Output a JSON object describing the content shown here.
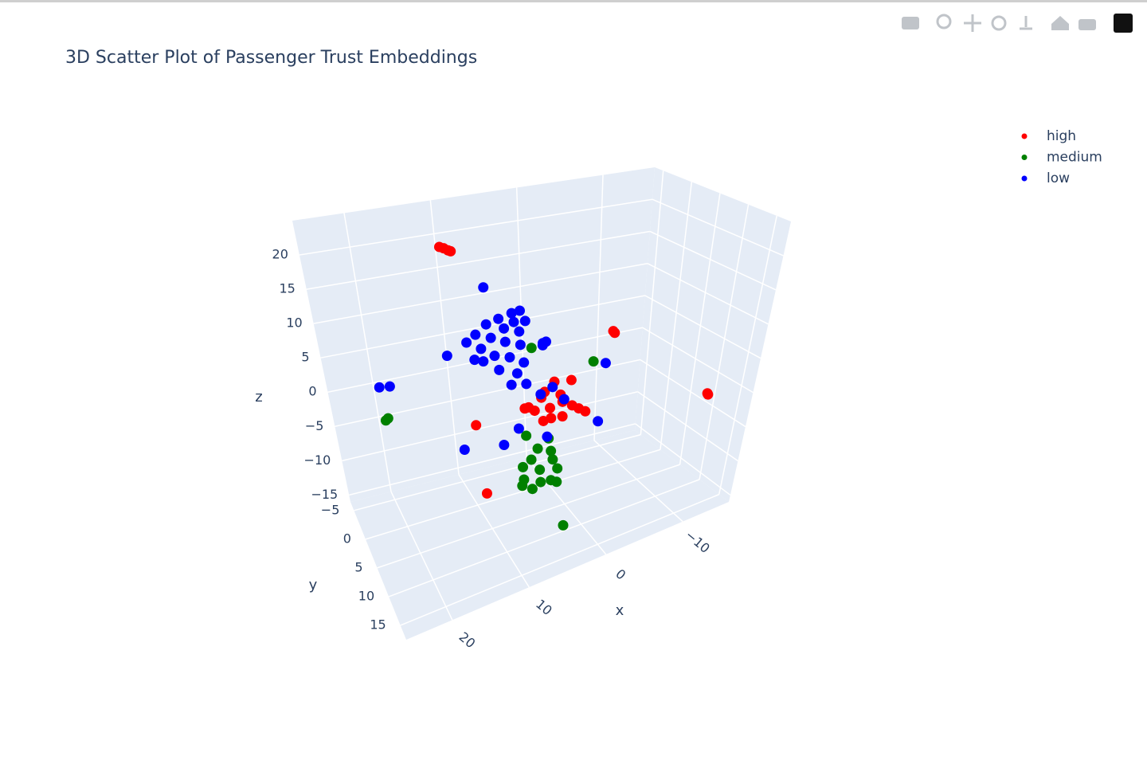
{
  "chart_data": {
    "type": "scatter3d",
    "title": "3D Scatter Plot of Passenger Trust Embeddings",
    "x_label": "x",
    "y_label": "y",
    "z_label": "z",
    "xlim": [
      -16,
      26
    ],
    "ylim": [
      -6.5,
      17.5
    ],
    "zlim": [
      -16,
      25
    ],
    "xticks": [
      {
        "value": -10,
        "label": "−10"
      },
      0,
      10,
      20
    ],
    "yticks": [
      {
        "value": -5,
        "label": "−5"
      },
      0,
      5,
      10,
      15
    ],
    "zticks": [
      {
        "value": -15,
        "label": "−15"
      },
      {
        "value": -10,
        "label": "−10"
      },
      {
        "value": -5,
        "label": "−5"
      },
      0,
      5,
      10,
      15,
      20
    ],
    "grid": true,
    "legend": "top-right",
    "series": [
      {
        "name": "high",
        "color": "#ff0000",
        "x": [
          2.7,
          3.9,
          1.1,
          4.7,
          1.0,
          5.5,
          3.5,
          1.4,
          -0.2,
          -2.0,
          -1.1,
          2.3,
          0.1,
          6.0,
          2.5,
          3.5,
          11.6,
          11.1,
          10.6,
          10.3,
          -8.2,
          -8.0,
          -15.1,
          -15.0,
          12.3,
          10.8
        ],
        "y": [
          5,
          5,
          5,
          5,
          5,
          5,
          5,
          5,
          5,
          5,
          5,
          5,
          5,
          5,
          5,
          5,
          -3,
          -3,
          -3,
          -3,
          0,
          0,
          10,
          10,
          5,
          5
        ],
        "z": [
          -1.5,
          0.3,
          -1.1,
          -1.3,
          -3.2,
          -0.6,
          -3.1,
          0.0,
          -2.0,
          -3.4,
          -2.7,
          2.1,
          1.7,
          -0.6,
          -3.0,
          1.0,
          19.9,
          19.6,
          19.2,
          19.0,
          4.0,
          4.3,
          -3.0,
          -2.8,
          -1.1,
          -10.9
        ]
      },
      {
        "name": "medium",
        "color": "#008000",
        "x": [
          3.7,
          4.9,
          2.0,
          5.8,
          3.5,
          1.3,
          4.1,
          2.3,
          4.6,
          6.0,
          1.3,
          6.0,
          2.1,
          2.7,
          5.4,
          -2.6,
          5.7,
          23.8,
          23.5,
          2.5
        ],
        "y": [
          5,
          5,
          5,
          5,
          5,
          5,
          5,
          5,
          5,
          5,
          5,
          5,
          5,
          5,
          5,
          5,
          5,
          5,
          5,
          10
        ],
        "z": [
          -9.9,
          -8.1,
          -9.0,
          -10.6,
          -11.7,
          -10.5,
          -6.8,
          -7.7,
          -12.3,
          -11.4,
          -12.4,
          -8.8,
          -11.9,
          -5.8,
          7.7,
          3.6,
          -4.5,
          2.7,
          2.9,
          -15.2
        ]
      },
      {
        "name": "low",
        "color": "#0000ff",
        "x": [
          8.0,
          7.0,
          9.6,
          6.3,
          11.1,
          8.9,
          7.0,
          12.4,
          10.5,
          8.7,
          6.8,
          13.5,
          11.7,
          10.0,
          8.1,
          6.3,
          12.5,
          9.4,
          7.1,
          5.9,
          7.8,
          4.0,
          7.7,
          11.4,
          4.0,
          3.6,
          15.9,
          -4.2,
          -3.8,
          4.0,
          2.5,
          0.9,
          6.7,
          2.9,
          8.6,
          13.8,
          24.4,
          23.1,
          8.4
        ],
        "y": [
          5,
          5,
          5,
          5,
          5,
          5,
          5,
          5,
          5,
          5,
          5,
          5,
          5,
          5,
          5,
          5,
          5,
          5,
          5,
          5,
          5,
          5,
          5,
          5,
          5,
          5,
          5,
          5,
          5,
          5,
          5,
          5,
          5,
          5,
          5,
          5,
          5,
          5,
          0
        ],
        "z": [
          13.2,
          13.3,
          12.8,
          11.7,
          12.4,
          11.3,
          10.4,
          11.3,
          10.4,
          9.4,
          8.5,
          10.5,
          9.2,
          7.8,
          7.1,
          5.9,
          7.9,
          5.7,
          4.6,
          2.8,
          3.2,
          7.7,
          11.9,
          7.4,
          8.0,
          8.1,
          9.3,
          2.9,
          -5.4,
          0.8,
          1.4,
          -0.8,
          -3.2,
          -5.5,
          -4.9,
          -4.0,
          7.2,
          7.0,
          14.7
        ]
      }
    ]
  }
}
